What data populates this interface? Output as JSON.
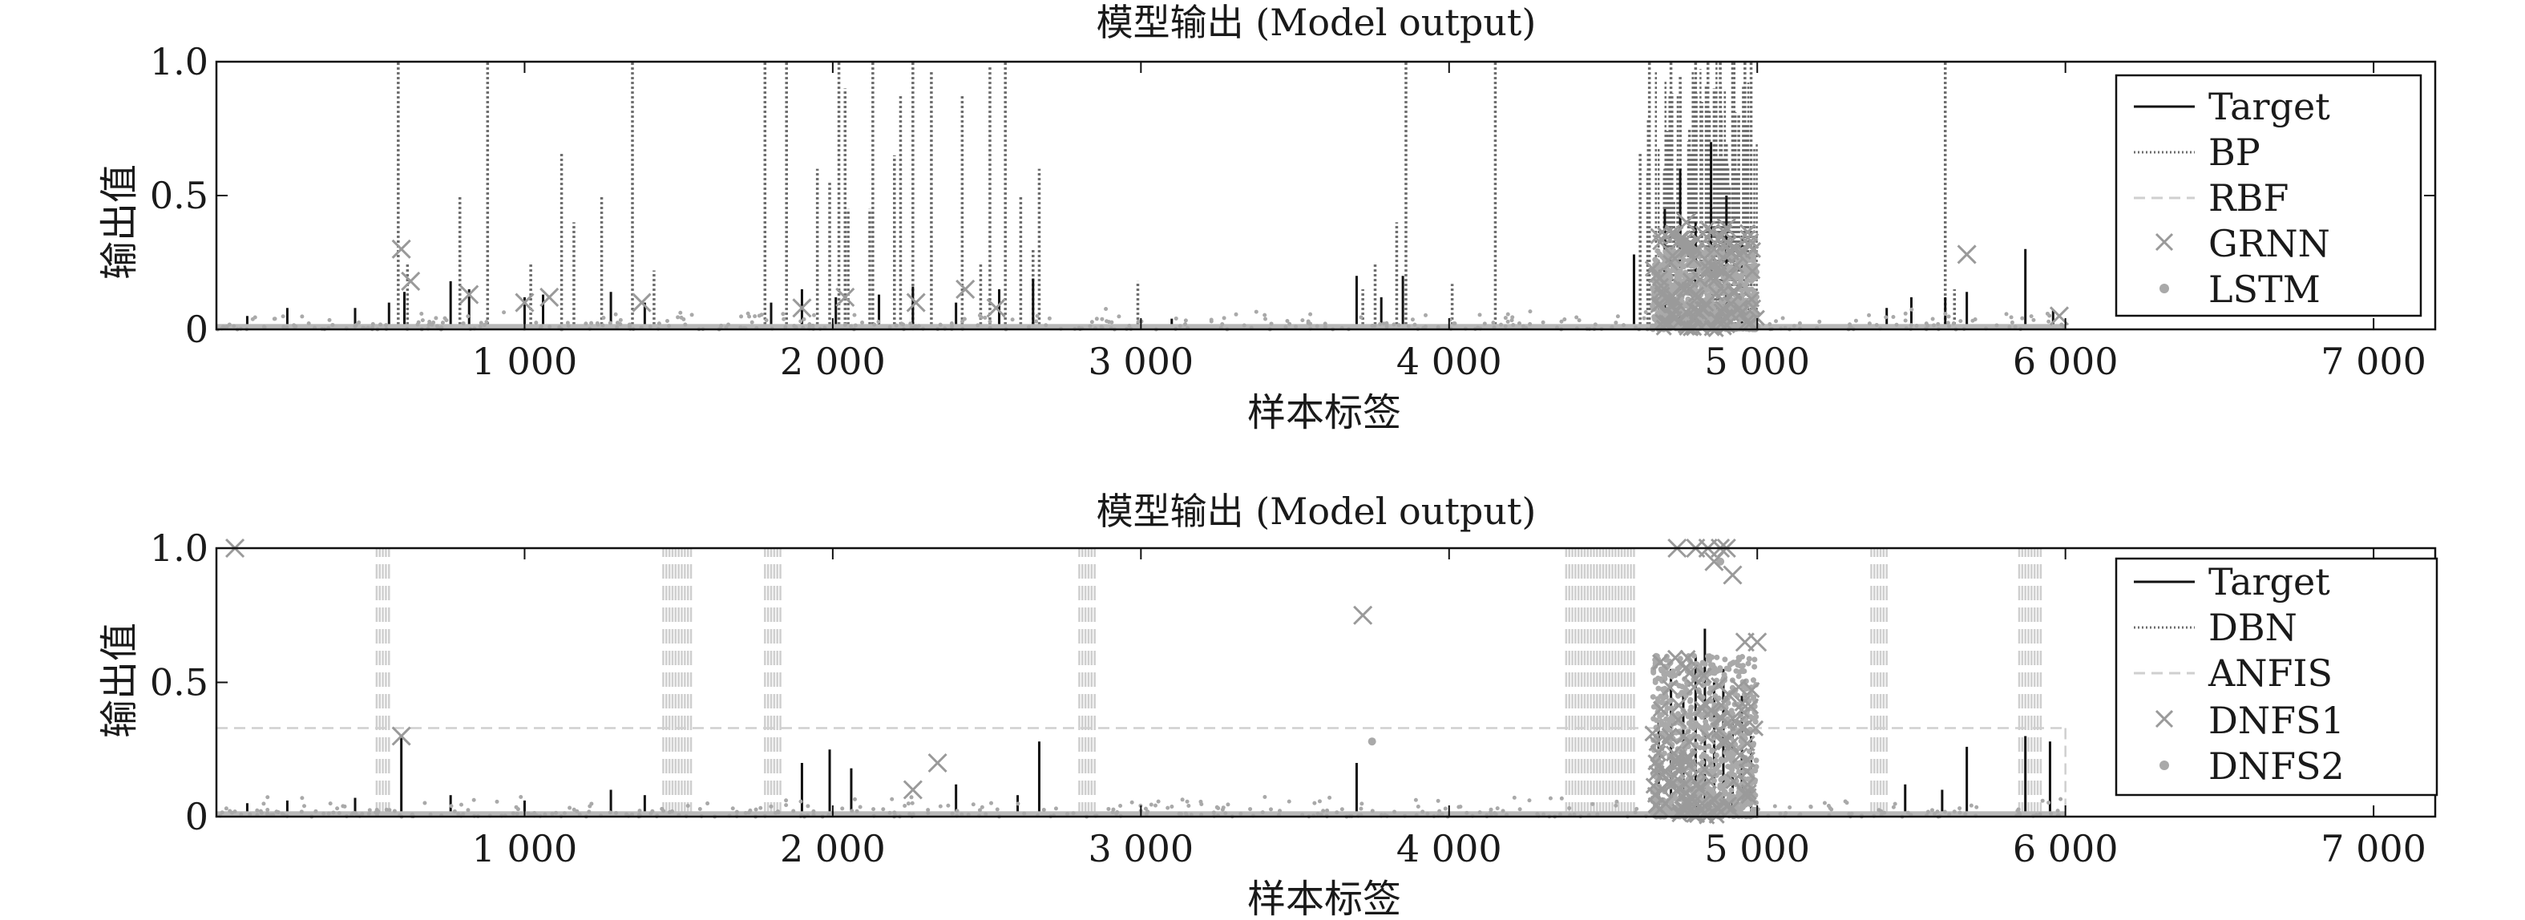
{
  "colors": {
    "target": "#111111",
    "bp": "#6e6e6e",
    "rbf": "#cfcfcf",
    "grnn": "#9a9a9a",
    "lstm": "#a9a9a9",
    "dbn": "#6e6e6e",
    "anfis": "#cfcfcf",
    "dnfs1": "#9a9a9a",
    "dnfs2": "#a9a9a9"
  },
  "chart_data": [
    {
      "type": "line",
      "title": "模型输出 (Model output)",
      "xlabel": "样本标签",
      "ylabel": "输出值",
      "xlim": [
        0,
        7200
      ],
      "ylim": [
        0,
        1.0
      ],
      "xticks": [
        1000,
        2000,
        3000,
        4000,
        5000,
        6000,
        7000
      ],
      "xtick_labels": [
        "1 000",
        "2 000",
        "3 000",
        "4 000",
        "5 000",
        "6 000",
        "7 000"
      ],
      "yticks": [
        0,
        0.5,
        1.0
      ],
      "ytick_labels": [
        "0",
        "0.5",
        "1.0"
      ],
      "legend_position": "top-right",
      "series": [
        {
          "name": "Target",
          "style": "solid",
          "x": [
            100,
            230,
            450,
            560,
            610,
            760,
            820,
            1000,
            1060,
            1280,
            1390,
            1800,
            1900,
            2010,
            2150,
            2260,
            2400,
            2540,
            2650,
            3100,
            3700,
            3780,
            3850,
            4600,
            4700,
            4750,
            4800,
            4850,
            4900,
            4950,
            5420,
            5500,
            5610,
            5680,
            5870,
            5960
          ],
          "y": [
            0.05,
            0.08,
            0.08,
            0.1,
            0.14,
            0.18,
            0.15,
            0.12,
            0.13,
            0.14,
            0.1,
            0.1,
            0.15,
            0.12,
            0.13,
            0.16,
            0.1,
            0.15,
            0.19,
            0.04,
            0.2,
            0.12,
            0.2,
            0.28,
            0.45,
            0.6,
            0.4,
            0.7,
            0.5,
            0.35,
            0.08,
            0.12,
            0.12,
            0.14,
            0.3,
            0.07
          ]
        },
        {
          "name": "BP",
          "style": "dotted",
          "x": [
            590,
            620,
            790,
            880,
            1020,
            1120,
            1160,
            1250,
            1350,
            1420,
            1780,
            1850,
            1950,
            1990,
            2020,
            2040,
            2050,
            2120,
            2130,
            2200,
            2220,
            2260,
            2320,
            2420,
            2480,
            2510,
            2560,
            2610,
            2650,
            2670,
            2990,
            3720,
            3760,
            3830,
            3860,
            4010,
            4150,
            4620,
            4650,
            4700,
            4720,
            4750,
            4780,
            4800,
            4820,
            4840,
            4860,
            4880,
            4900,
            4920,
            4940,
            4960,
            4980,
            5610,
            5640
          ],
          "y": [
            1.0,
            0.25,
            0.5,
            1.0,
            0.25,
            0.66,
            0.4,
            0.5,
            1.0,
            0.22,
            1.0,
            1.0,
            0.6,
            0.55,
            1.0,
            0.9,
            0.45,
            0.45,
            1.0,
            0.65,
            0.88,
            1.0,
            0.97,
            0.88,
            0.25,
            0.98,
            1.0,
            0.5,
            0.3,
            0.6,
            0.18,
            0.15,
            0.25,
            0.4,
            1.0,
            0.17,
            1.0,
            0.66,
            1.0,
            0.6,
            1.0,
            0.95,
            0.75,
            1.0,
            0.85,
            1.0,
            0.9,
            1.0,
            0.7,
            1.0,
            0.8,
            1.0,
            1.0,
            1.0,
            0.15
          ]
        },
        {
          "name": "RBF",
          "style": "dashed",
          "x": [],
          "y": []
        },
        {
          "name": "GRNN",
          "style": "x-marker",
          "x": [
            600,
            630,
            820,
            1000,
            1080,
            1380,
            1900,
            2040,
            2270,
            2430,
            2530,
            4730,
            4770,
            4820,
            4860,
            4900,
            4940,
            5680,
            5980
          ],
          "y": [
            0.3,
            0.18,
            0.13,
            0.1,
            0.12,
            0.1,
            0.08,
            0.12,
            0.1,
            0.15,
            0.08,
            0.35,
            0.4,
            0.32,
            0.3,
            0.38,
            0.28,
            0.28,
            0.05
          ],
          "cluster": {
            "x_range": [
              4660,
              5000
            ],
            "y_range": [
              0.0,
              0.38
            ]
          }
        },
        {
          "name": "LSTM",
          "style": "dot-marker",
          "cluster": {
            "x_range": [
              4660,
              5000
            ],
            "y_range": [
              0.0,
              0.3
            ]
          }
        }
      ]
    },
    {
      "type": "line",
      "title": "模型输出 (Model output)",
      "xlabel": "样本标签",
      "ylabel": "输出值",
      "xlim": [
        0,
        7200
      ],
      "ylim": [
        0,
        1.0
      ],
      "xticks": [
        1000,
        2000,
        3000,
        4000,
        5000,
        6000,
        7000
      ],
      "xtick_labels": [
        "1 000",
        "2 000",
        "3 000",
        "4 000",
        "5 000",
        "6 000",
        "7 000"
      ],
      "yticks": [
        0,
        0.5,
        1.0
      ],
      "ytick_labels": [
        "0",
        "0.5",
        "1.0"
      ],
      "legend_position": "top-right",
      "series": [
        {
          "name": "Target",
          "style": "solid",
          "x": [
            100,
            230,
            450,
            600,
            760,
            1000,
            1280,
            1390,
            1900,
            1990,
            2060,
            2400,
            2600,
            2670,
            3700,
            4680,
            4720,
            4760,
            4800,
            4830,
            4860,
            4890,
            4920,
            4950,
            4980,
            5480,
            5600,
            5680,
            5870,
            5950
          ],
          "y": [
            0.05,
            0.06,
            0.07,
            0.3,
            0.08,
            0.06,
            0.1,
            0.08,
            0.2,
            0.25,
            0.18,
            0.12,
            0.08,
            0.28,
            0.2,
            0.35,
            0.55,
            0.45,
            0.6,
            0.7,
            0.5,
            0.55,
            0.4,
            0.45,
            0.3,
            0.12,
            0.1,
            0.26,
            0.3,
            0.28
          ]
        },
        {
          "name": "DBN",
          "style": "dotted",
          "x": [],
          "y": []
        },
        {
          "name": "ANFIS",
          "style": "dashed",
          "baseline": 0.33,
          "x_start": 0,
          "x_end": 6000,
          "spike_ranges": [
            [
              520,
              560
            ],
            [
              1450,
              1540
            ],
            [
              1780,
              1830
            ],
            [
              2800,
              2850
            ],
            [
              4380,
              4600
            ],
            [
              5370,
              5420
            ],
            [
              5850,
              5920
            ]
          ]
        },
        {
          "name": "DNFS1",
          "style": "x-marker",
          "x": [
            60,
            600,
            2260,
            2340,
            3720,
            4740,
            4800,
            4840,
            4860,
            4880,
            4900,
            4920,
            4960,
            5000
          ],
          "y": [
            1.0,
            0.3,
            0.1,
            0.2,
            0.75,
            1.0,
            1.0,
            1.0,
            0.95,
            1.0,
            1.0,
            0.9,
            0.65,
            0.65
          ],
          "cluster": {
            "x_range": [
              4660,
              5000
            ],
            "y_range": [
              0.0,
              0.6
            ]
          }
        },
        {
          "name": "DNFS2",
          "style": "dot-marker",
          "x": [
            3750,
            4880
          ],
          "y": [
            0.28,
            0.95
          ],
          "cluster": {
            "x_range": [
              4660,
              5000
            ],
            "y_range": [
              0.0,
              0.6
            ]
          }
        }
      ]
    }
  ]
}
